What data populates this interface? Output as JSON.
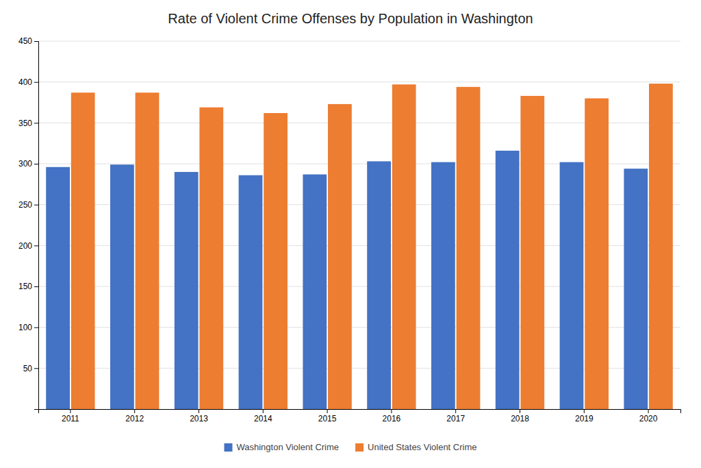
{
  "chart_data": {
    "type": "bar",
    "title": "Rate of Violent Crime Offenses by Population in Washington",
    "categories": [
      "2011",
      "2012",
      "2013",
      "2014",
      "2015",
      "2016",
      "2017",
      "2018",
      "2019",
      "2020"
    ],
    "series": [
      {
        "name": "Washington Violent Crime",
        "color": "#4472C4",
        "values": [
          296,
          299,
          290,
          286,
          287,
          303,
          302,
          316,
          302,
          294
        ]
      },
      {
        "name": "United States Violent Crime",
        "color": "#ED7D31",
        "values": [
          387,
          387,
          369,
          362,
          373,
          397,
          394,
          383,
          380,
          398
        ]
      }
    ],
    "ylim": [
      0,
      450
    ],
    "yticks": [
      50,
      100,
      150,
      200,
      250,
      300,
      350,
      400,
      450
    ],
    "grid": true,
    "legend": "bottom"
  }
}
